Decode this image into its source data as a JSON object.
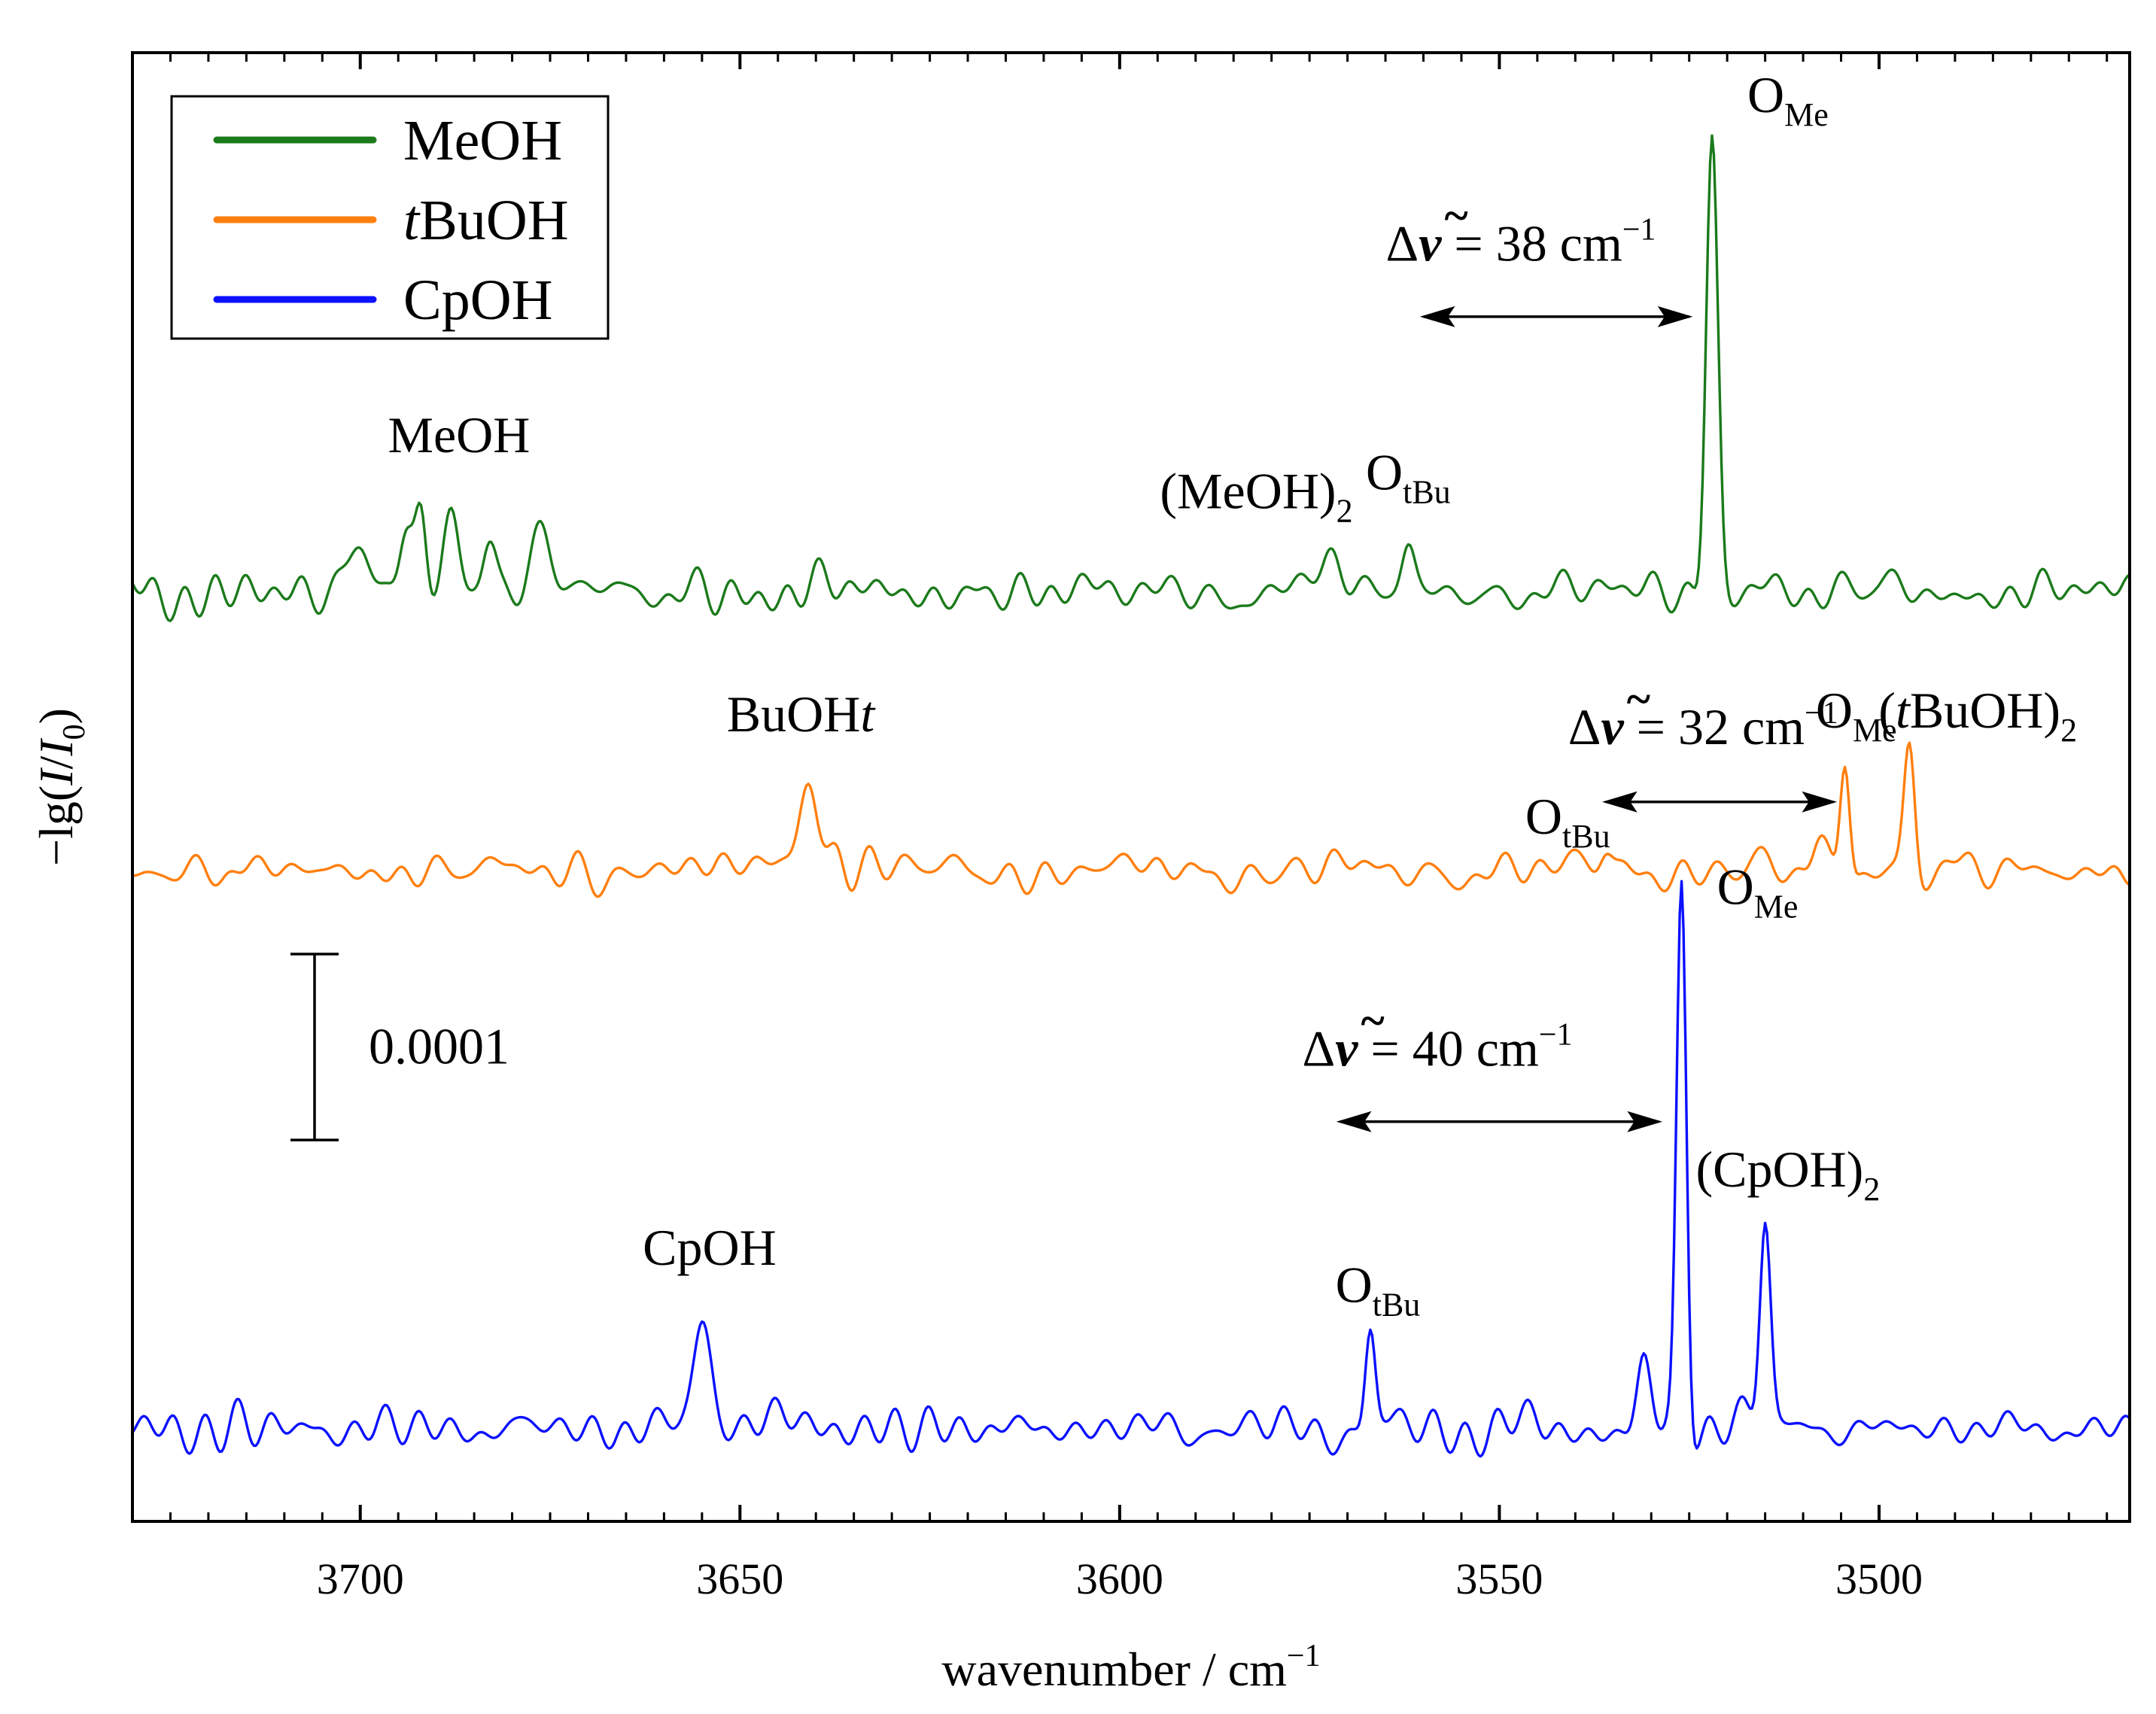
{
  "chart_data": {
    "type": "line",
    "title": "",
    "xlabel": "wavenumber / cm",
    "xlabel_sup": "−1",
    "ylabel_prefix": "−lg(",
    "ylabel_I": "I",
    "ylabel_slash": "/",
    "ylabel_I0": "I",
    "ylabel_sub": "0",
    "ylabel_suffix": ")",
    "x_reversed": true,
    "xlim": [
      3730,
      3467
    ],
    "x_ticks": [
      3700,
      3650,
      3600,
      3550,
      3500
    ],
    "x_tick_labels": [
      "3700",
      "3650",
      "3600",
      "3550",
      "3500"
    ],
    "y_ticks_shown": false,
    "legend": {
      "placement": "top-left",
      "entries": [
        {
          "label": "MeOH",
          "color": "#1b7a1b"
        },
        {
          "label_italic": "t",
          "label": "BuOH",
          "color": "#ff7f0e"
        },
        {
          "label": "CpOH",
          "color": "#0b10ff"
        }
      ]
    },
    "scale_bar": {
      "label": "0.0001",
      "value": 0.0001
    },
    "series": [
      {
        "name": "MeOH",
        "color": "#1b7a1b",
        "offset": 0.0005,
        "peaks": [
          {
            "x": 3700,
            "h": 2e-05,
            "w": 2.0
          },
          {
            "x": 3694,
            "h": 3e-05,
            "w": 1.2
          },
          {
            "x": 3692,
            "h": 4e-05,
            "w": 1.0
          },
          {
            "x": 3688,
            "h": 5e-05,
            "w": 1.5
          },
          {
            "x": 3683,
            "h": 3e-05,
            "w": 1.2
          },
          {
            "x": 3676,
            "h": 3e-05,
            "w": 1.8
          },
          {
            "x": 3572,
            "h": 2e-05,
            "w": 1.8
          },
          {
            "x": 3562,
            "h": 2.5e-05,
            "w": 1.2
          },
          {
            "x": 3522,
            "h": 0.00025,
            "w": 1.1
          }
        ],
        "labels": [
          {
            "text": "MeOH",
            "x": 3687,
            "y_units": 0.000575
          },
          {
            "text": "(MeOH)",
            "sub": "2",
            "x": 3582,
            "y_units": 0.000545
          },
          {
            "text": "O",
            "sub": "tBu",
            "x": 3562,
            "y_units": 0.000555
          },
          {
            "text": "O",
            "sub": "Me",
            "x": 3512,
            "y_units": 0.000758
          }
        ],
        "delta": {
          "text_pre": "Δ",
          "text_post": " = 38 cm",
          "sup": "−1",
          "x_from": 3560,
          "x_to": 3525,
          "y_units": 0.000648,
          "label_y_units": 0.000678
        }
      },
      {
        "name": "tBuOH",
        "color": "#ff7f0e",
        "offset": 0.00035,
        "peaks": [
          {
            "x": 3645,
            "h": 1e-05,
            "w": 2.5
          },
          {
            "x": 3641,
            "h": 5e-05,
            "w": 1.6
          },
          {
            "x": 3637,
            "h": 1.5e-05,
            "w": 1.5
          },
          {
            "x": 3536,
            "h": 1.6e-05,
            "w": 1.2
          },
          {
            "x": 3508,
            "h": 1e-05,
            "w": 1.2
          },
          {
            "x": 3504.5,
            "h": 6.8e-05,
            "w": 0.9
          },
          {
            "x": 3496,
            "h": 6.8e-05,
            "w": 1.0
          }
        ],
        "labels": [
          {
            "text_italic": "t",
            "text": "BuOH",
            "x": 3642,
            "y_units": 0.000425
          },
          {
            "text": "O",
            "sub": "tBu",
            "x": 3541,
            "y_units": 0.00037
          },
          {
            "text": "O",
            "sub": "Me",
            "x": 3503,
            "y_units": 0.000427
          },
          {
            "text": "(",
            "text_italic": "t",
            "text_post": "BuOH)",
            "sub": "2",
            "x": 3487,
            "y_units": 0.000427
          }
        ],
        "delta": {
          "text_pre": "Δ",
          "text_post": " = 32 cm",
          "sup": "−1",
          "x_from": 3536,
          "x_to": 3506,
          "y_units": 0.000387,
          "label_y_units": 0.000418
        }
      },
      {
        "name": "CpOH",
        "color": "#0b10ff",
        "offset": 5e-05,
        "peaks": [
          {
            "x": 3655,
            "h": 6e-05,
            "w": 1.6
          },
          {
            "x": 3646,
            "h": 1.2e-05,
            "w": 2.0
          },
          {
            "x": 3567,
            "h": 5e-05,
            "w": 0.9
          },
          {
            "x": 3531,
            "h": 3e-05,
            "w": 1.2
          },
          {
            "x": 3526,
            "h": 0.00029,
            "w": 0.9
          },
          {
            "x": 3515,
            "h": 0.00011,
            "w": 1.0
          },
          {
            "x": 3518,
            "h": 1e-05,
            "w": 2.0
          }
        ],
        "labels": [
          {
            "text": "CpOH",
            "x": 3654,
            "y_units": 0.000138
          },
          {
            "text": "O",
            "sub": "tBu",
            "x": 3566,
            "y_units": 0.000118
          },
          {
            "text": "O",
            "sub": "Me",
            "x": 3516,
            "y_units": 0.000332
          },
          {
            "text": "(CpOH)",
            "sub": "2",
            "x": 3512,
            "y_units": 0.00018
          }
        ],
        "delta": {
          "text_pre": "Δ",
          "text_post": " = 40 cm",
          "sup": "−1",
          "x_from": 3571,
          "x_to": 3529,
          "y_units": 0.000215,
          "label_y_units": 0.000245
        }
      }
    ],
    "ylim": [
      0.0,
      0.00079
    ]
  }
}
